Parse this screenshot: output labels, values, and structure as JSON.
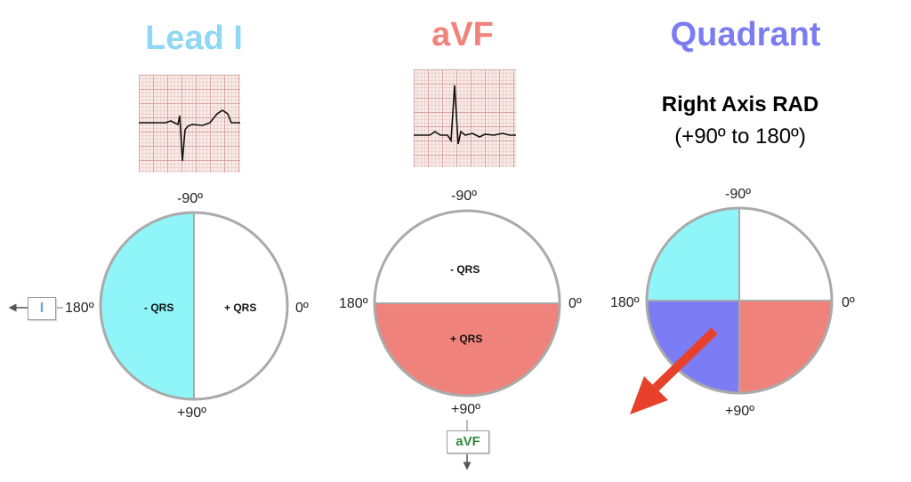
{
  "titles": {
    "lead_i": "Lead I",
    "avf": "aVF",
    "quadrant": "Quadrant"
  },
  "quadrant_info": {
    "axis_name": "Right Axis RAD",
    "range": "(+90º to 180º)"
  },
  "angles": {
    "top": "-90º",
    "bottom": "+90º",
    "left": "180º",
    "right": "0º"
  },
  "qrs_labels": {
    "negative": "- QRS",
    "positive": "+ QRS"
  },
  "lead_boxes": {
    "lead_i": "I",
    "avf": "aVF"
  },
  "colors": {
    "lead_i_title": "#8fd7f3",
    "avf_title": "#f0837a",
    "quadrant_title": "#7b7cf2",
    "cyan_fill": "#8ff5f8",
    "red_fill": "#ef837b",
    "blue_fill": "#7c7cf4",
    "arrow": "#e8412b",
    "circle_stroke": "#aaaaaa"
  }
}
